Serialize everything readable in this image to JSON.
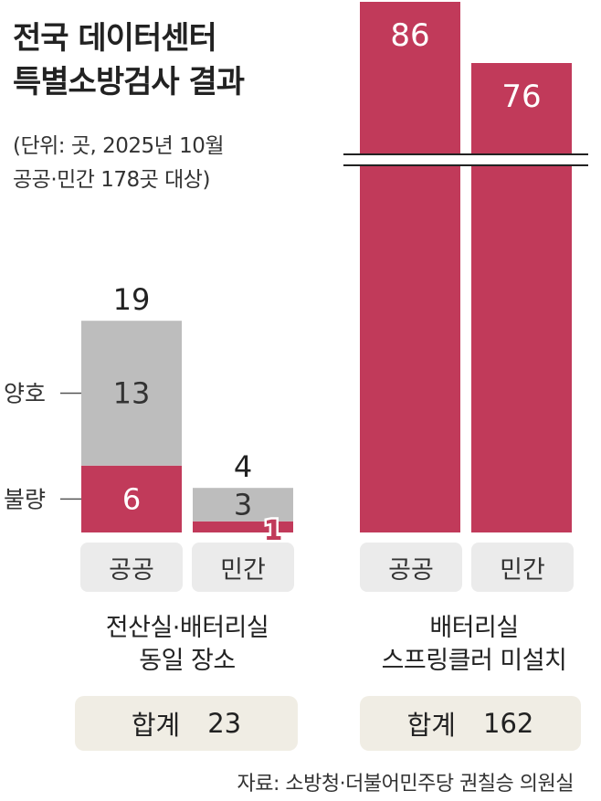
{
  "title_line1": "전국 데이터센터",
  "title_line2": "특별소방검사 결과",
  "unit_line1": "(단위: 곳, 2025년 10월",
  "unit_line2": "공공·민간 178곳 대상)",
  "colors": {
    "bad": "#c13a5a",
    "good": "#bdbdbd",
    "label_bg": "#ebebeb",
    "total_bg": "#f0ede4"
  },
  "chart_data": [
    {
      "type": "bar",
      "stacked": true,
      "title": "전산실·배터리실 동일 장소",
      "categories": [
        "공공",
        "민간"
      ],
      "series": [
        {
          "name": "불량",
          "values": [
            6,
            1
          ]
        },
        {
          "name": "양호",
          "values": [
            13,
            3
          ]
        }
      ],
      "totals": [
        19,
        4
      ],
      "total_label": "합계",
      "total_value": "23"
    },
    {
      "type": "bar",
      "axis_break": true,
      "title": "배터리실 스프링클러 미설치",
      "categories": [
        "공공",
        "민간"
      ],
      "series": [
        {
          "values": [
            86,
            76
          ]
        }
      ],
      "total_label": "합계",
      "total_value": "162"
    }
  ],
  "left_group_line1": "전산실·배터리실",
  "left_group_line2": "동일 장소",
  "right_group_line1": "배터리실",
  "right_group_line2": "스프링클러 미설치",
  "source": "자료: 소방청·더불어민주당 권칠승 의원실"
}
